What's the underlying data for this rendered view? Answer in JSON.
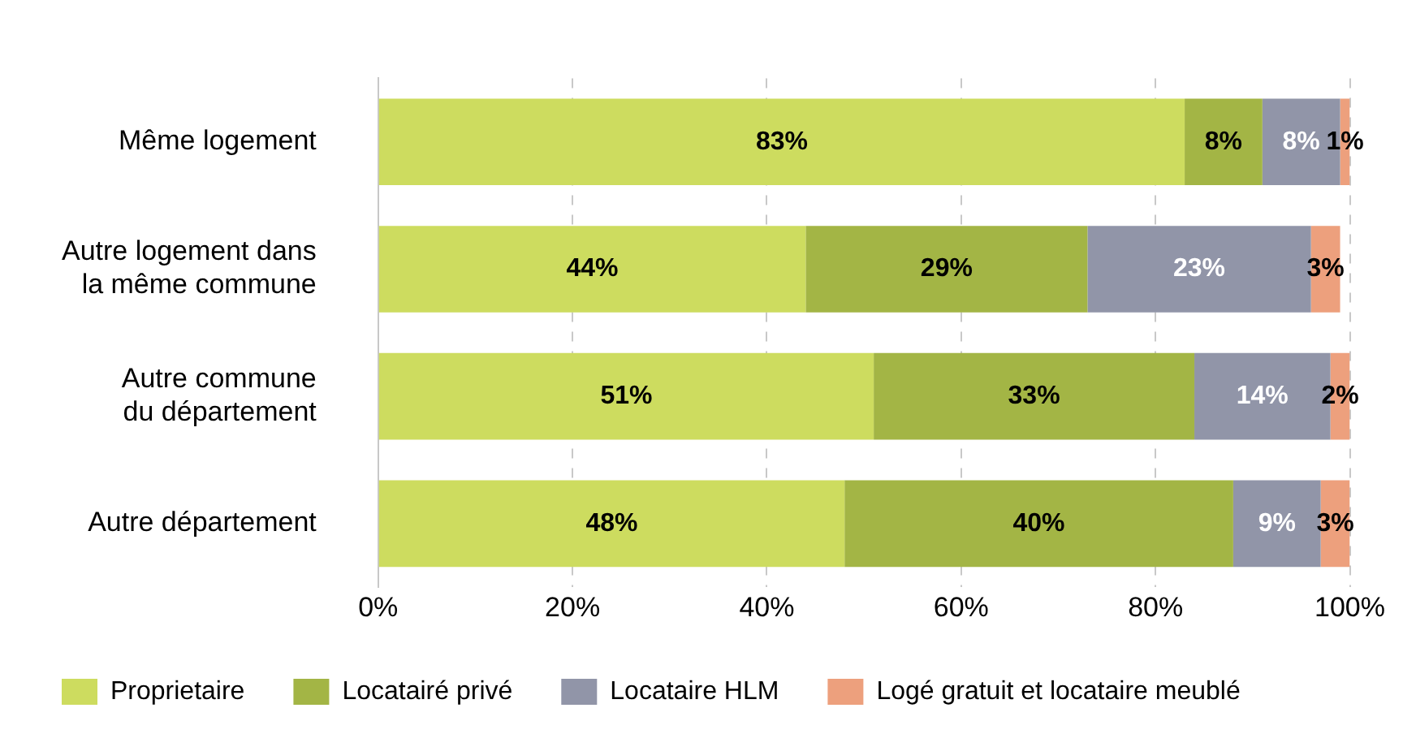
{
  "chart_data": {
    "type": "bar",
    "orientation": "horizontal",
    "stacked": true,
    "categories": [
      "Même logement",
      "Autre logement dans la même commune",
      "Autre commune du département",
      "Autre département"
    ],
    "series": [
      {
        "name": "Proprietaire",
        "color": "#cddc5f",
        "values": [
          83,
          44,
          51,
          48
        ],
        "value_labels": [
          "83%",
          "44%",
          "51%",
          "48%"
        ]
      },
      {
        "name": "Locatairé privé",
        "color": "#a3b545",
        "values": [
          8,
          29,
          33,
          40
        ],
        "value_labels": [
          "8%",
          "29%",
          "33%",
          "40%"
        ]
      },
      {
        "name": "Locataire HLM",
        "color": "#9195a8",
        "values": [
          8,
          23,
          14,
          9
        ],
        "value_labels": [
          "8%",
          "23%",
          "14%",
          "9%"
        ]
      },
      {
        "name": "Logé gratuit et locataire meublé",
        "color": "#eda07d",
        "values": [
          1,
          3,
          2,
          3
        ],
        "value_labels": [
          "1%",
          "3%",
          "2%",
          "3%"
        ]
      }
    ],
    "xlim": [
      0,
      100
    ],
    "xticks": [
      {
        "value": 0,
        "label": "0%"
      },
      {
        "value": 20,
        "label": "20%"
      },
      {
        "value": 40,
        "label": "40%"
      },
      {
        "value": 60,
        "label": "60%"
      },
      {
        "value": 80,
        "label": "80%"
      },
      {
        "value": 100,
        "label": "100%"
      }
    ],
    "grid": "x",
    "legend": "bottom"
  }
}
